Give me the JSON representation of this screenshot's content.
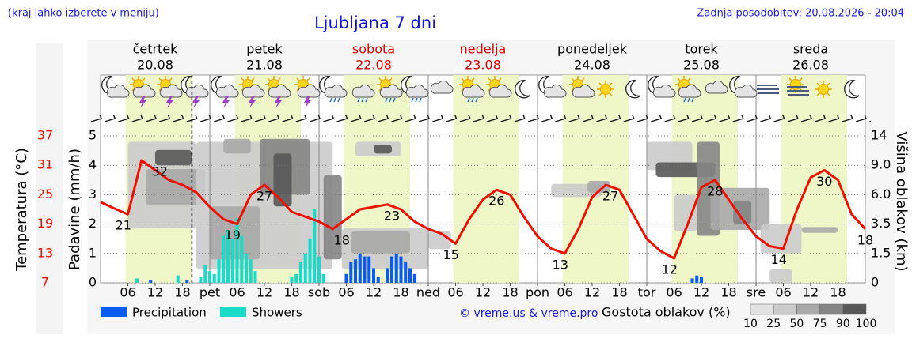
{
  "chart_data": {
    "type": "meteogram",
    "title": "Ljubljana 7 dni",
    "note": "(kraj lahko izberete v meniju)",
    "updated": "Zadnja posodobitev: 20.08.2026 - 20:04",
    "source": "© vreme.us & vreme.pro",
    "days": [
      {
        "name": "četrtek",
        "date": "20.08",
        "color": "#000000"
      },
      {
        "name": "petek",
        "date": "21.08",
        "color": "#000000"
      },
      {
        "name": "sobota",
        "date": "22.08",
        "color": "#dd0000"
      },
      {
        "name": "nedelja",
        "date": "23.08",
        "color": "#dd0000"
      },
      {
        "name": "ponedeljek",
        "date": "24.08",
        "color": "#000000"
      },
      {
        "name": "torek",
        "date": "25.08",
        "color": "#000000"
      },
      {
        "name": "sreda",
        "date": "26.08",
        "color": "#000000"
      }
    ],
    "xlim": [
      0,
      168
    ],
    "xticks": [
      {
        "value": 6,
        "label": "06"
      },
      12,
      18,
      {
        "value": 24,
        "label": "pet"
      },
      {
        "value": 30,
        "label": "06"
      },
      {
        "value": 36,
        "label": "12"
      },
      {
        "value": 42,
        "label": "18"
      },
      {
        "value": 48,
        "label": "sob"
      },
      {
        "value": 54,
        "label": "06"
      },
      {
        "value": 60,
        "label": "12"
      },
      {
        "value": 66,
        "label": "18"
      },
      {
        "value": 72,
        "label": "ned"
      },
      {
        "value": 78,
        "label": "06"
      },
      {
        "value": 84,
        "label": "12"
      },
      {
        "value": 90,
        "label": "18"
      },
      {
        "value": 96,
        "label": "pon"
      },
      {
        "value": 102,
        "label": "06"
      },
      {
        "value": 108,
        "label": "12"
      },
      {
        "value": 114,
        "label": "18"
      },
      {
        "value": 120,
        "label": "tor"
      },
      {
        "value": 126,
        "label": "06"
      },
      {
        "value": 132,
        "label": "12"
      },
      {
        "value": 138,
        "label": "18"
      },
      {
        "value": 144,
        "label": "sre"
      },
      {
        "value": 150,
        "label": "06"
      },
      {
        "value": 156,
        "label": "12"
      },
      {
        "value": 162,
        "label": "18"
      }
    ],
    "daylight": [
      5.5,
      20
    ],
    "now": 20.07,
    "ylabel": "Padavine (mm/h)",
    "ylim": [
      0,
      5
    ],
    "yticks": [
      0,
      1,
      2,
      3,
      4,
      5
    ],
    "grid": true,
    "series": [
      {
        "name": "Precipitation",
        "color": "#0a5cf0",
        "x": [
          11,
          19,
          54,
          55,
          56,
          57,
          58,
          59,
          60,
          61,
          63,
          64,
          65,
          66,
          67,
          68,
          69,
          130,
          131,
          132
        ],
        "values": [
          0.08,
          0.1,
          0.3,
          0.7,
          0.8,
          1.0,
          0.9,
          0.9,
          0.5,
          0.2,
          0.5,
          0.9,
          1.0,
          0.9,
          0.7,
          0.5,
          0.3,
          0.15,
          0.25,
          0.2
        ]
      },
      {
        "name": "Showers",
        "color": "#19dcc8",
        "x": [
          8,
          17,
          22,
          23,
          24,
          25,
          26,
          27,
          28,
          29,
          30,
          31,
          32,
          33,
          34,
          42,
          43,
          44,
          45,
          46,
          47,
          48,
          49
        ],
        "values": [
          0.15,
          0.25,
          0.2,
          0.6,
          0.4,
          0.3,
          0.8,
          1.6,
          1.8,
          1.5,
          2.2,
          1.6,
          1.0,
          0.8,
          0.4,
          0.2,
          0.3,
          0.7,
          1.0,
          1.5,
          2.5,
          0.9,
          0.3
        ]
      }
    ],
    "temperature": {
      "label": "Temperatura (°C)",
      "color": "#ee1100",
      "ylim": [
        7,
        37
      ],
      "yticks": [
        7,
        13,
        19,
        25,
        31,
        37
      ],
      "x": [
        0,
        3,
        6,
        9,
        12,
        15,
        18,
        21,
        24,
        27,
        30,
        33,
        36,
        39,
        42,
        45,
        48,
        51,
        54,
        57,
        60,
        63,
        66,
        69,
        72,
        75,
        78,
        81,
        84,
        87,
        90,
        93,
        96,
        99,
        102,
        105,
        108,
        111,
        114,
        117,
        120,
        123,
        126,
        129,
        132,
        135,
        138,
        141,
        144,
        147,
        150,
        153,
        156,
        159,
        162,
        165,
        168
      ],
      "values": [
        23.5,
        22.2,
        21,
        32,
        30,
        28,
        27,
        25.5,
        22.5,
        20,
        19,
        25,
        27,
        24.5,
        21.5,
        20.5,
        19.5,
        18,
        20,
        22,
        22.5,
        23,
        22,
        19.5,
        18,
        17,
        15,
        20,
        24,
        26,
        25,
        20.5,
        16.5,
        14,
        13,
        18,
        24.5,
        27,
        26,
        21,
        16,
        13.5,
        12,
        19,
        26.5,
        28,
        24,
        20,
        16.5,
        14.5,
        14,
        22,
        28.5,
        30,
        28,
        21,
        18
      ],
      "labels": [
        {
          "x": 5,
          "value": 21
        },
        {
          "x": 13,
          "value": 32
        },
        {
          "x": 29,
          "value": 19
        },
        {
          "x": 36,
          "value": 27
        },
        {
          "x": 53,
          "value": 18
        },
        {
          "x": 64,
          "value": 23
        },
        {
          "x": 77,
          "value": 15
        },
        {
          "x": 87,
          "value": 26
        },
        {
          "x": 101,
          "value": 13
        },
        {
          "x": 112,
          "value": 27
        },
        {
          "x": 125,
          "value": 12
        },
        {
          "x": 135,
          "value": 28
        },
        {
          "x": 149,
          "value": 14
        },
        {
          "x": 159,
          "value": 30
        },
        {
          "x": 168,
          "value": 18
        }
      ]
    },
    "y2label": "Višina oblakov (km)",
    "y2lim": [
      0,
      14
    ],
    "y2ticks": [
      0,
      1.5,
      3.5,
      {
        "value": 6,
        "label": "6.0"
      },
      {
        "value": 9,
        "label": "9.0"
      },
      14
    ],
    "clouds": {
      "label": "Gostota oblakov (%)",
      "ticks": [
        10,
        25,
        50,
        75,
        90,
        100
      ],
      "colors": [
        "#e2e2e2",
        "#cbcbcb",
        "#a9a9a9",
        "#858585",
        "#585858"
      ],
      "cells": [
        [
          6,
          21,
          3.2,
          13,
          25
        ],
        [
          10,
          23,
          5.1,
          8.6,
          50
        ],
        [
          12,
          20,
          9,
          11.6,
          90
        ],
        [
          21,
          51,
          0.7,
          13,
          25
        ],
        [
          24,
          35,
          1.2,
          5,
          50
        ],
        [
          27,
          33,
          11,
          13.5,
          50
        ],
        [
          35,
          46,
          6,
          13.5,
          75
        ],
        [
          38,
          42,
          5,
          11,
          90
        ],
        [
          49,
          53,
          1.2,
          8,
          75
        ],
        [
          53,
          72,
          0.7,
          3.2,
          25
        ],
        [
          55,
          68,
          1.5,
          3,
          50
        ],
        [
          56,
          66,
          10.5,
          13,
          25
        ],
        [
          60,
          64,
          11,
          12.5,
          90
        ],
        [
          72,
          77,
          1.8,
          3,
          25
        ],
        [
          99,
          110,
          5.8,
          7.1,
          25
        ],
        [
          107,
          112,
          6.2,
          7.4,
          50
        ],
        [
          120,
          130,
          8.5,
          13,
          25
        ],
        [
          122,
          135,
          7.8,
          9.5,
          90
        ],
        [
          126,
          131,
          3,
          6,
          25
        ],
        [
          131,
          136,
          2.7,
          13,
          75
        ],
        [
          134,
          147,
          3.1,
          6.7,
          50
        ],
        [
          139,
          143,
          3.5,
          5.5,
          75
        ],
        [
          145,
          154,
          1.5,
          3.5,
          25
        ],
        [
          154,
          162,
          2.9,
          3.3,
          50
        ],
        [
          147,
          152,
          0,
          0.7,
          25
        ]
      ]
    }
  }
}
